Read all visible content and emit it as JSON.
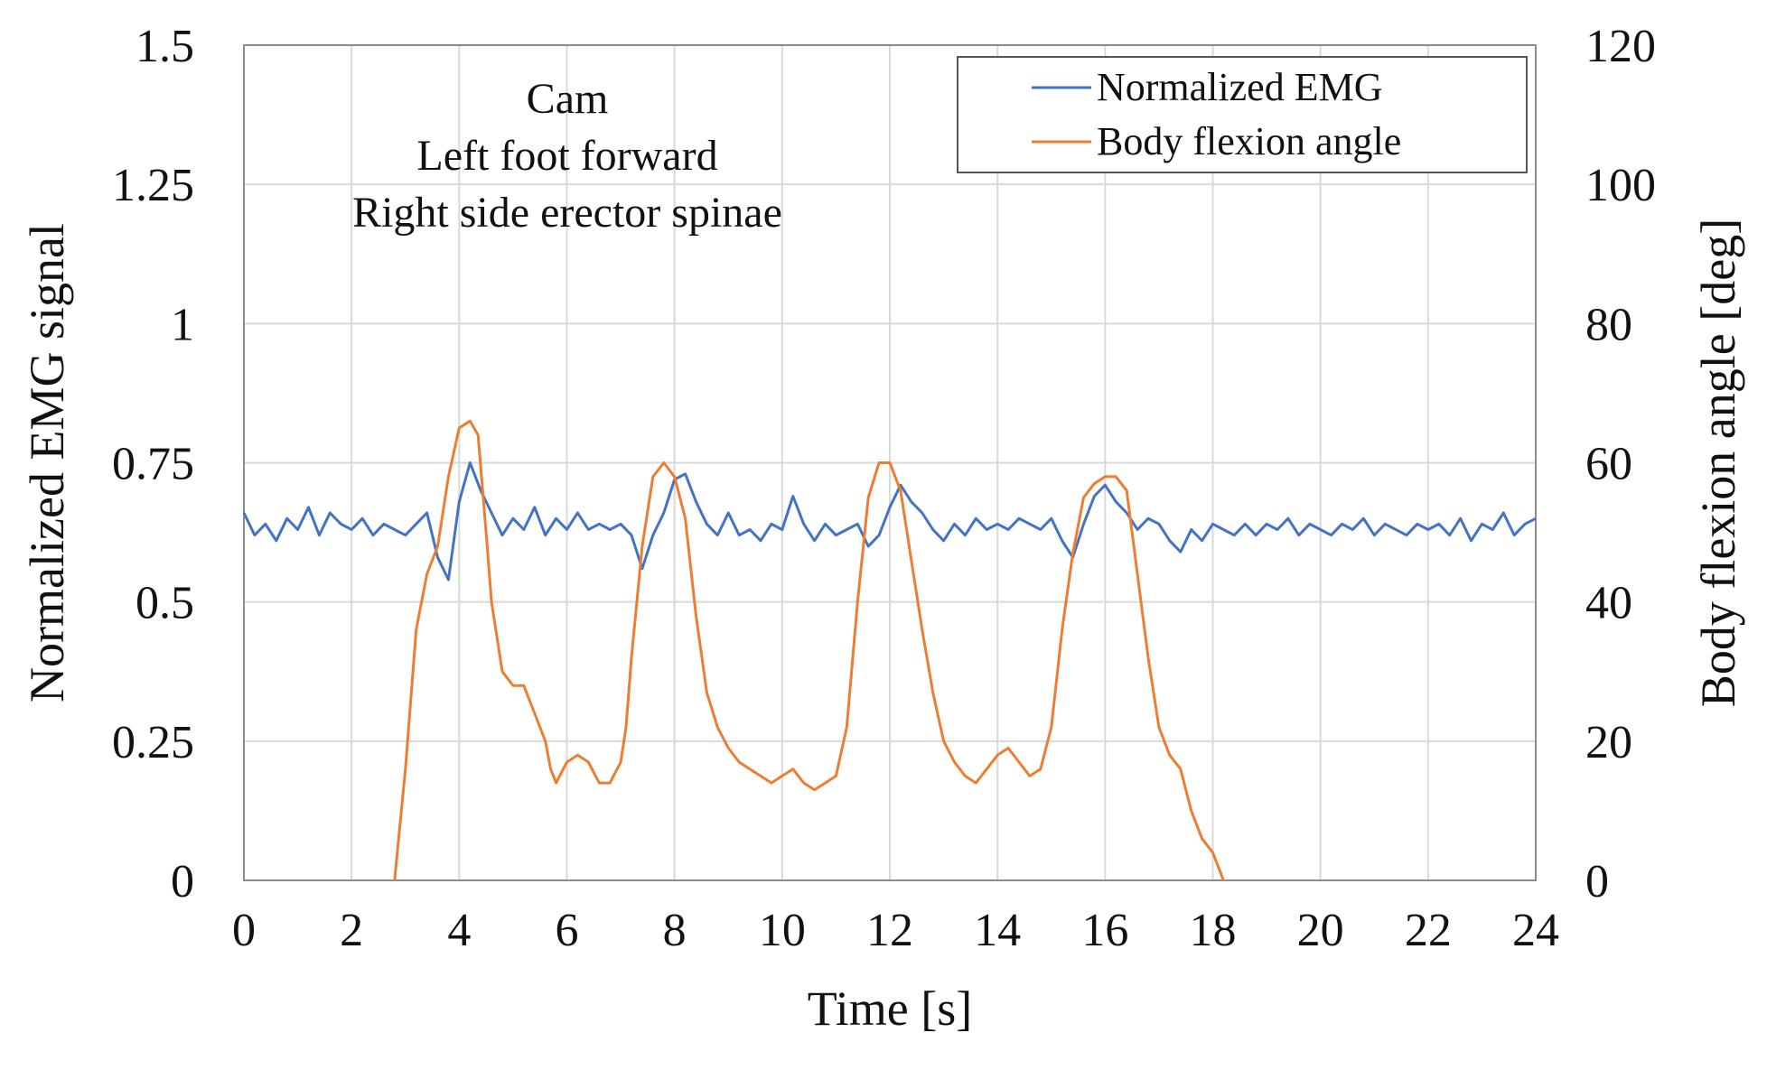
{
  "chart_data": {
    "type": "line",
    "annotation": [
      "Cam",
      "Left foot forward",
      "Right side erector spinae"
    ],
    "xlabel": "Time [s]",
    "ylabel_left": "Normalized EMG signal",
    "ylabel_right": "Body flexion angle [deg]",
    "xlim": [
      0,
      24
    ],
    "ylim_left": [
      0,
      1.5
    ],
    "ylim_right": [
      0,
      120
    ],
    "x_ticks": [
      "0",
      "2",
      "4",
      "6",
      "8",
      "10",
      "12",
      "14",
      "16",
      "18",
      "20",
      "22",
      "24"
    ],
    "y_left_ticks": [
      "0",
      "0.25",
      "0.5",
      "0.75",
      "1",
      "1.25",
      "1.5"
    ],
    "y_right_ticks": [
      "0",
      "20",
      "40",
      "60",
      "80",
      "100",
      "120"
    ],
    "grid": true,
    "legend": {
      "placement": "top-right",
      "entries": [
        "Normalized EMG",
        "Body flexion angle"
      ]
    },
    "series": [
      {
        "name": "Normalized EMG",
        "axis": "left",
        "color": "#4472C4",
        "x": [
          0,
          0.2,
          0.4,
          0.6,
          0.8,
          1.0,
          1.2,
          1.4,
          1.6,
          1.8,
          2.0,
          2.2,
          2.4,
          2.6,
          2.8,
          3.0,
          3.2,
          3.4,
          3.6,
          3.8,
          4.0,
          4.2,
          4.4,
          4.6,
          4.8,
          5.0,
          5.2,
          5.4,
          5.6,
          5.8,
          6.0,
          6.2,
          6.4,
          6.6,
          6.8,
          7.0,
          7.2,
          7.4,
          7.6,
          7.8,
          8.0,
          8.2,
          8.4,
          8.6,
          8.8,
          9.0,
          9.2,
          9.4,
          9.6,
          9.8,
          10.0,
          10.2,
          10.4,
          10.6,
          10.8,
          11.0,
          11.2,
          11.4,
          11.6,
          11.8,
          12.0,
          12.2,
          12.4,
          12.6,
          12.8,
          13.0,
          13.2,
          13.4,
          13.6,
          13.8,
          14.0,
          14.2,
          14.4,
          14.6,
          14.8,
          15.0,
          15.2,
          15.4,
          15.6,
          15.8,
          16.0,
          16.2,
          16.4,
          16.6,
          16.8,
          17.0,
          17.2,
          17.4,
          17.6,
          17.8,
          18.0,
          18.2,
          18.4,
          18.6,
          18.8,
          19.0,
          19.2,
          19.4,
          19.6,
          19.8,
          20.0,
          20.2,
          20.4,
          20.6,
          20.8,
          21.0,
          21.2,
          21.4,
          21.6,
          21.8,
          22.0,
          22.2,
          22.4,
          22.6,
          22.8,
          23.0,
          23.2,
          23.4,
          23.6,
          23.8,
          24.0
        ],
        "values": [
          0.66,
          0.62,
          0.64,
          0.61,
          0.65,
          0.63,
          0.67,
          0.62,
          0.66,
          0.64,
          0.63,
          0.65,
          0.62,
          0.64,
          0.63,
          0.62,
          0.64,
          0.66,
          0.58,
          0.54,
          0.68,
          0.75,
          0.7,
          0.66,
          0.62,
          0.65,
          0.63,
          0.67,
          0.62,
          0.65,
          0.63,
          0.66,
          0.63,
          0.64,
          0.63,
          0.64,
          0.62,
          0.56,
          0.62,
          0.66,
          0.72,
          0.73,
          0.68,
          0.64,
          0.62,
          0.66,
          0.62,
          0.63,
          0.61,
          0.64,
          0.63,
          0.69,
          0.64,
          0.61,
          0.64,
          0.62,
          0.63,
          0.64,
          0.6,
          0.62,
          0.67,
          0.71,
          0.68,
          0.66,
          0.63,
          0.61,
          0.64,
          0.62,
          0.65,
          0.63,
          0.64,
          0.63,
          0.65,
          0.64,
          0.63,
          0.65,
          0.61,
          0.58,
          0.64,
          0.69,
          0.71,
          0.68,
          0.66,
          0.63,
          0.65,
          0.64,
          0.61,
          0.59,
          0.63,
          0.61,
          0.64,
          0.63,
          0.62,
          0.64,
          0.62,
          0.64,
          0.63,
          0.65,
          0.62,
          0.64,
          0.63,
          0.62,
          0.64,
          0.63,
          0.65,
          0.62,
          0.64,
          0.63,
          0.62,
          0.64,
          0.63,
          0.64,
          0.62,
          0.65,
          0.61,
          0.64,
          0.63,
          0.66,
          0.62,
          0.64,
          0.65
        ]
      },
      {
        "name": "Body flexion angle",
        "axis": "right",
        "color": "#ED7D31",
        "x": [
          2.8,
          3.0,
          3.2,
          3.4,
          3.6,
          3.8,
          4.0,
          4.2,
          4.35,
          4.5,
          4.6,
          4.8,
          4.9,
          5.0,
          5.2,
          5.4,
          5.6,
          5.7,
          5.8,
          6.0,
          6.2,
          6.4,
          6.6,
          6.8,
          7.0,
          7.1,
          7.2,
          7.4,
          7.6,
          7.8,
          8.0,
          8.2,
          8.4,
          8.6,
          8.8,
          9.0,
          9.2,
          9.4,
          9.6,
          9.8,
          10.0,
          10.2,
          10.4,
          10.6,
          10.8,
          11.0,
          11.2,
          11.4,
          11.6,
          11.8,
          12.0,
          12.2,
          12.4,
          12.6,
          12.8,
          13.0,
          13.2,
          13.4,
          13.6,
          13.8,
          14.0,
          14.2,
          14.4,
          14.6,
          14.8,
          15.0,
          15.2,
          15.4,
          15.6,
          15.8,
          16.0,
          16.2,
          16.4,
          16.6,
          16.8,
          17.0,
          17.2,
          17.4,
          17.6,
          17.8,
          18.0,
          18.2
        ],
        "values": [
          0,
          16,
          36,
          44,
          48,
          58,
          65,
          66,
          64,
          50,
          40,
          30,
          29,
          28,
          28,
          24,
          20,
          16,
          14,
          17,
          18,
          17,
          14,
          14,
          17,
          22,
          32,
          48,
          58,
          60,
          58,
          52,
          38,
          27,
          22,
          19,
          17,
          16,
          15,
          14,
          15,
          16,
          14,
          13,
          14,
          15,
          22,
          40,
          55,
          60,
          60,
          56,
          46,
          36,
          27,
          20,
          17,
          15,
          14,
          16,
          18,
          19,
          17,
          15,
          16,
          22,
          36,
          47,
          55,
          57,
          58,
          58,
          56,
          44,
          32,
          22,
          18,
          16,
          10,
          6,
          4,
          0
        ]
      }
    ]
  }
}
